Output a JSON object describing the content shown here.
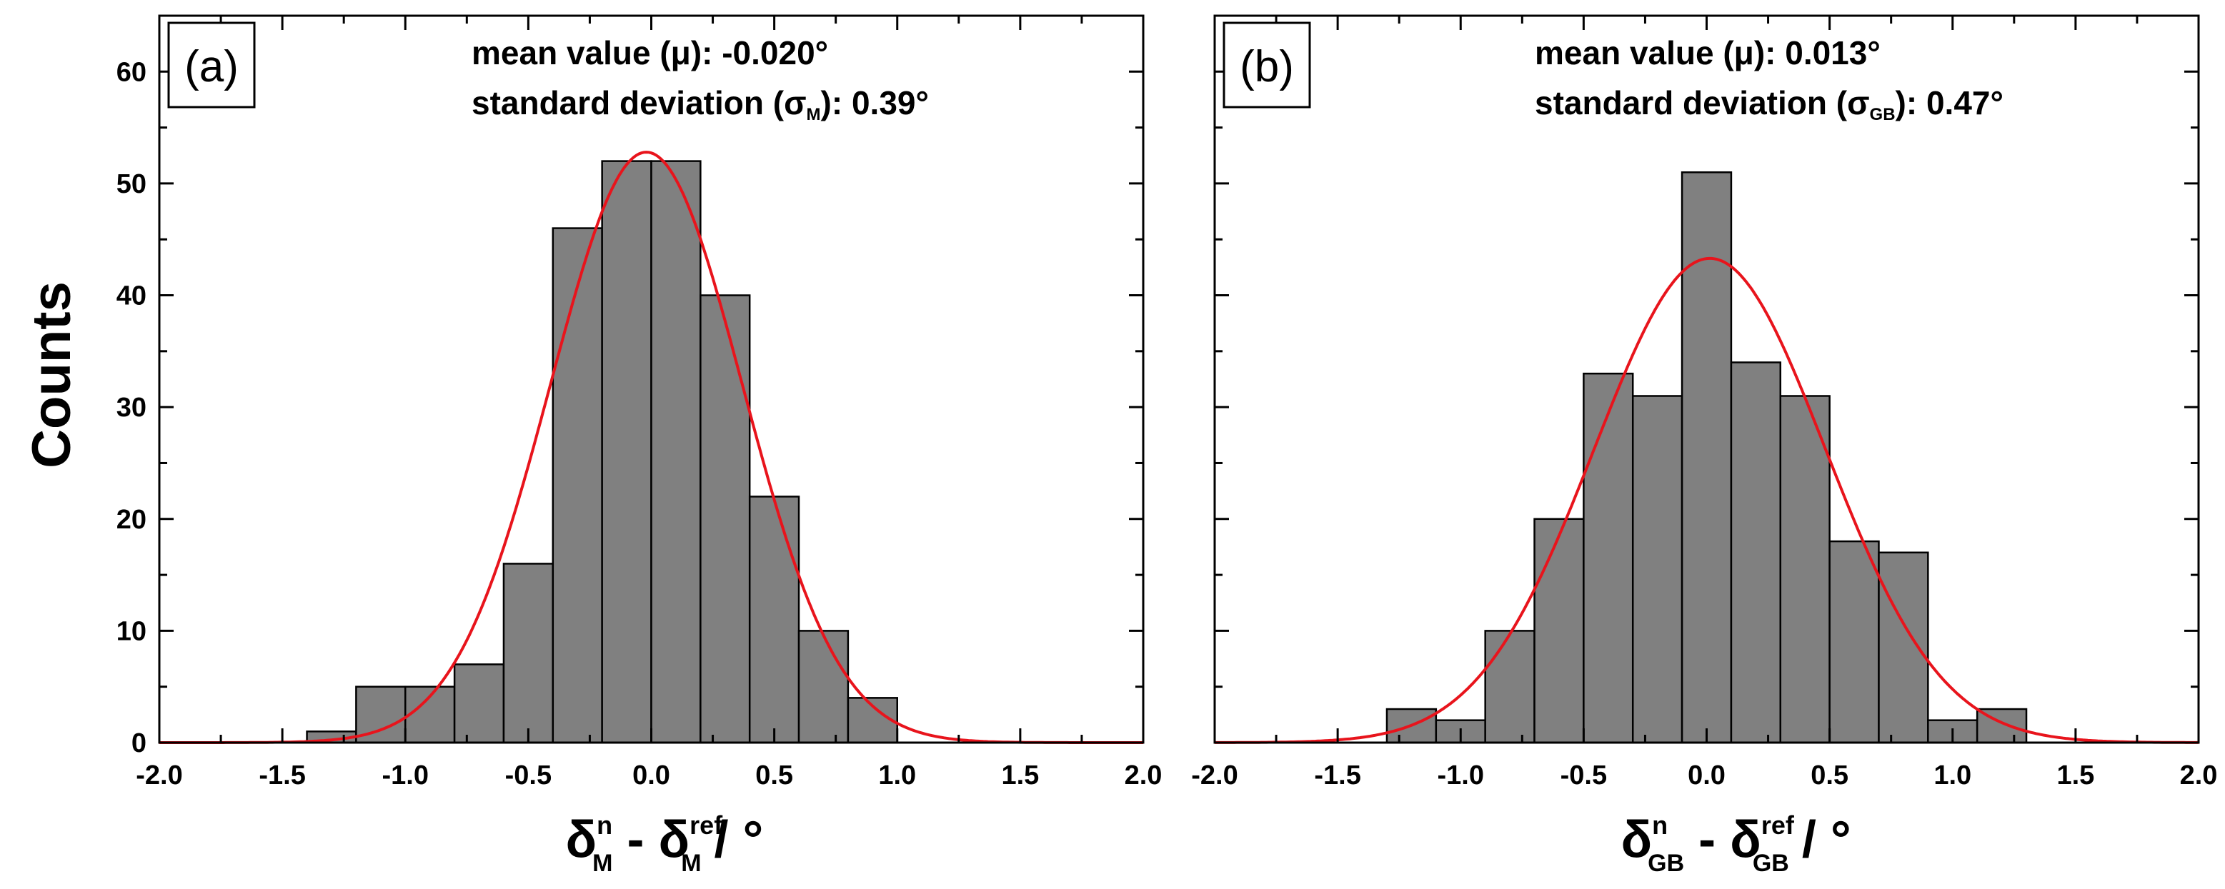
{
  "chart_data": [
    {
      "type": "bar",
      "panel_label": "(a)",
      "stats": {
        "mean_prefix": "mean value (μ): ",
        "mean_value": "-0.020°",
        "sd_prefix": "standard deviation (σ",
        "sd_sub": "M",
        "sd_suffix": "): 0.39°"
      },
      "xlabel": {
        "sym1": "δ",
        "sub1": "M",
        "sup1": "n",
        "mid": " - ",
        "sym2": "δ",
        "sub2": "M",
        "sup2": "ref",
        "unit": "/ °"
      },
      "ylabel": "Counts",
      "xlim": [
        -2.0,
        2.0
      ],
      "ylim": [
        0,
        65
      ],
      "x_ticks": [
        "-2.0",
        "-1.5",
        "-1.0",
        "-0.5",
        "0.0",
        "0.5",
        "1.0",
        "1.5",
        "2.0"
      ],
      "y_ticks": [
        "0",
        "10",
        "20",
        "30",
        "40",
        "50",
        "60"
      ],
      "bins": [
        {
          "x0": -1.4,
          "x1": -1.2,
          "count": 1
        },
        {
          "x0": -1.2,
          "x1": -1.0,
          "count": 5
        },
        {
          "x0": -1.0,
          "x1": -0.8,
          "count": 5
        },
        {
          "x0": -0.8,
          "x1": -0.6,
          "count": 7
        },
        {
          "x0": -0.6,
          "x1": -0.4,
          "count": 16
        },
        {
          "x0": -0.4,
          "x1": -0.2,
          "count": 46
        },
        {
          "x0": -0.2,
          "x1": 0.0,
          "count": 52
        },
        {
          "x0": 0.0,
          "x1": 0.2,
          "count": 52
        },
        {
          "x0": 0.2,
          "x1": 0.4,
          "count": 40
        },
        {
          "x0": 0.4,
          "x1": 0.6,
          "count": 22
        },
        {
          "x0": 0.6,
          "x1": 0.8,
          "count": 10
        },
        {
          "x0": 0.8,
          "x1": 1.0,
          "count": 4
        }
      ],
      "fit": {
        "type": "gaussian",
        "mean": -0.02,
        "sigma": 0.39,
        "amplitude": 52.8,
        "color": "#e8141c"
      },
      "bar_color": "#808080"
    },
    {
      "type": "bar",
      "panel_label": "(b)",
      "stats": {
        "mean_prefix": "mean value (μ): ",
        "mean_value": "0.013°",
        "sd_prefix": "standard deviation (σ",
        "sd_sub": "GB",
        "sd_suffix": "): 0.47°"
      },
      "xlabel": {
        "sym1": "δ",
        "sub1": "GB",
        "sup1": "n",
        "mid": " - ",
        "sym2": "δ",
        "sub2": "GB",
        "sup2": "ref",
        "unit": "/ °"
      },
      "ylabel": "",
      "xlim": [
        -2.0,
        2.0
      ],
      "ylim": [
        0,
        65
      ],
      "x_ticks": [
        "-2.0",
        "-1.5",
        "-1.0",
        "-0.5",
        "0.0",
        "0.5",
        "1.0",
        "1.5",
        "2.0"
      ],
      "y_ticks": [],
      "bins": [
        {
          "x0": -1.3,
          "x1": -1.1,
          "count": 3
        },
        {
          "x0": -1.1,
          "x1": -0.9,
          "count": 2
        },
        {
          "x0": -0.9,
          "x1": -0.7,
          "count": 10
        },
        {
          "x0": -0.7,
          "x1": -0.5,
          "count": 20
        },
        {
          "x0": -0.5,
          "x1": -0.3,
          "count": 33
        },
        {
          "x0": -0.3,
          "x1": -0.1,
          "count": 31
        },
        {
          "x0": -0.1,
          "x1": 0.1,
          "count": 51
        },
        {
          "x0": 0.1,
          "x1": 0.3,
          "count": 34
        },
        {
          "x0": 0.3,
          "x1": 0.5,
          "count": 31
        },
        {
          "x0": 0.5,
          "x1": 0.7,
          "count": 18
        },
        {
          "x0": 0.7,
          "x1": 0.9,
          "count": 17
        },
        {
          "x0": 0.9,
          "x1": 1.1,
          "count": 2
        },
        {
          "x0": 1.1,
          "x1": 1.3,
          "count": 3
        }
      ],
      "fit": {
        "type": "gaussian",
        "mean": 0.013,
        "sigma": 0.47,
        "amplitude": 43.3,
        "color": "#e8141c"
      },
      "bar_color": "#808080"
    }
  ]
}
